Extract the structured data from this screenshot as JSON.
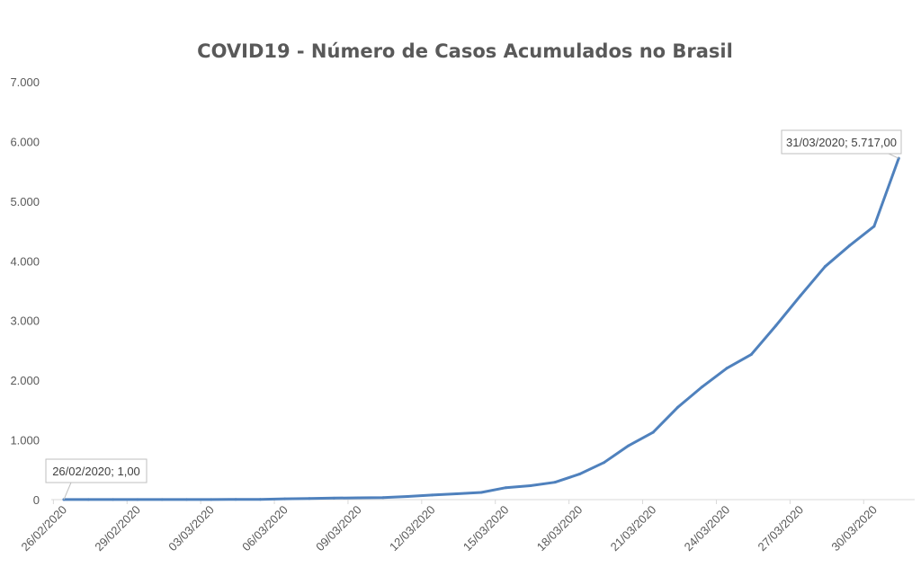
{
  "chart_data": {
    "type": "line",
    "title": "COVID19 - Número de Casos Acumulados no Brasil",
    "xlabel": "",
    "ylabel": "",
    "ylim": [
      0,
      7000
    ],
    "yticks": [
      "0",
      "1.000",
      "2.000",
      "3.000",
      "4.000",
      "5.000",
      "6.000",
      "7.000"
    ],
    "xtick_labels": [
      "26/02/2020",
      "29/02/2020",
      "03/03/2020",
      "06/03/2020",
      "09/03/2020",
      "12/03/2020",
      "15/03/2020",
      "18/03/2020",
      "21/03/2020",
      "24/03/2020",
      "27/03/2020",
      "30/03/2020"
    ],
    "grid": false,
    "line_color": "#4f81bd",
    "x": [
      "26/02/2020",
      "27/02/2020",
      "28/02/2020",
      "29/02/2020",
      "01/03/2020",
      "02/03/2020",
      "03/03/2020",
      "04/03/2020",
      "05/03/2020",
      "06/03/2020",
      "07/03/2020",
      "08/03/2020",
      "09/03/2020",
      "10/03/2020",
      "11/03/2020",
      "12/03/2020",
      "13/03/2020",
      "14/03/2020",
      "15/03/2020",
      "16/03/2020",
      "17/03/2020",
      "18/03/2020",
      "19/03/2020",
      "20/03/2020",
      "21/03/2020",
      "22/03/2020",
      "23/03/2020",
      "24/03/2020",
      "25/03/2020",
      "26/03/2020",
      "27/03/2020",
      "28/03/2020",
      "29/03/2020",
      "30/03/2020",
      "31/03/2020"
    ],
    "series": [
      {
        "values": [
          1,
          1,
          1,
          2,
          2,
          2,
          2,
          4,
          4,
          13,
          19,
          25,
          30,
          34,
          52,
          77,
          98,
          121,
          200,
          234,
          291,
          428,
          621,
          904,
          1128,
          1546,
          1891,
          2201,
          2433,
          2915,
          3417,
          3904,
          4256,
          4579,
          5717
        ]
      }
    ],
    "annotations": [
      {
        "label": "26/02/2020; 1,00",
        "x": "26/02/2020",
        "y": 1
      },
      {
        "label": "31/03/2020; 5.717,00",
        "x": "31/03/2020",
        "y": 5717
      }
    ]
  }
}
